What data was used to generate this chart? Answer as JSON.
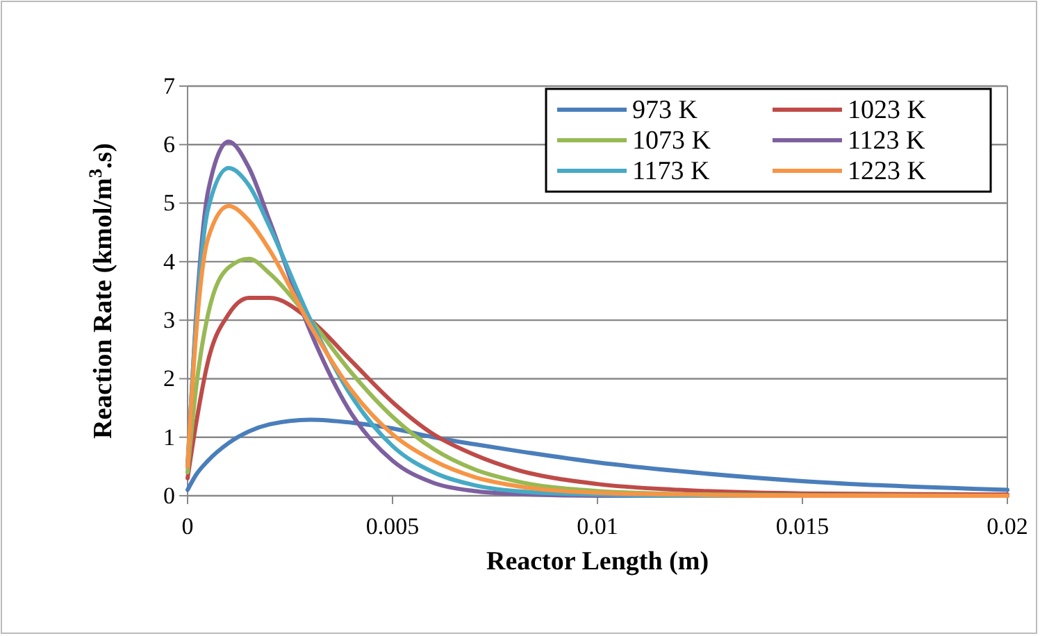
{
  "chart_data": {
    "type": "line",
    "xlabel": "Reactor Length (m)",
    "ylabel": "Reaction Rate (kmol/m$^{3}$.s)",
    "x": [
      0,
      0.0002,
      0.0005,
      0.001,
      0.0015,
      0.002,
      0.003,
      0.004,
      0.005,
      0.006,
      0.007,
      0.008,
      0.01,
      0.012,
      0.015,
      0.02
    ],
    "series": [
      {
        "name": "973 K",
        "color": "#4a7ebb",
        "values": [
          0.1,
          0.35,
          0.6,
          0.9,
          1.1,
          1.22,
          1.3,
          1.25,
          1.15,
          1.0,
          0.88,
          0.77,
          0.57,
          0.42,
          0.25,
          0.1
        ]
      },
      {
        "name": "1023 K",
        "color": "#be4b48",
        "values": [
          0.3,
          1.2,
          2.3,
          3.1,
          3.38,
          3.38,
          3.0,
          2.3,
          1.6,
          1.05,
          0.7,
          0.45,
          0.2,
          0.1,
          0.04,
          0.02
        ]
      },
      {
        "name": "1073 K",
        "color": "#98b954",
        "values": [
          0.4,
          1.8,
          3.1,
          3.9,
          4.05,
          3.8,
          3.0,
          2.1,
          1.35,
          0.8,
          0.45,
          0.25,
          0.08,
          0.03,
          0.01,
          0
        ]
      },
      {
        "name": "1123 K",
        "color": "#7d60a0",
        "values": [
          0.5,
          3.0,
          5.2,
          6.05,
          5.6,
          4.7,
          2.8,
          1.4,
          0.6,
          0.22,
          0.08,
          0.03,
          0,
          0,
          0,
          0
        ]
      },
      {
        "name": "1173 K",
        "color": "#46aac5",
        "values": [
          0.5,
          2.9,
          4.9,
          5.6,
          5.3,
          4.6,
          3.0,
          1.7,
          0.85,
          0.4,
          0.18,
          0.08,
          0.02,
          0,
          0,
          0
        ]
      },
      {
        "name": "1223 K",
        "color": "#f69545",
        "values": [
          0.5,
          2.7,
          4.4,
          4.95,
          4.7,
          4.2,
          2.9,
          1.8,
          1.05,
          0.6,
          0.32,
          0.17,
          0.05,
          0.02,
          0,
          0
        ]
      }
    ],
    "xlim": [
      0,
      0.02
    ],
    "xticks": [
      0,
      0.005,
      0.01,
      0.015,
      0.02
    ],
    "ylim": [
      0,
      7
    ],
    "yticks": [
      0,
      1,
      2,
      3,
      4,
      5,
      6,
      7
    ],
    "grid": "y",
    "legend": "top right",
    "marker": "none",
    "line_style": "solid"
  }
}
